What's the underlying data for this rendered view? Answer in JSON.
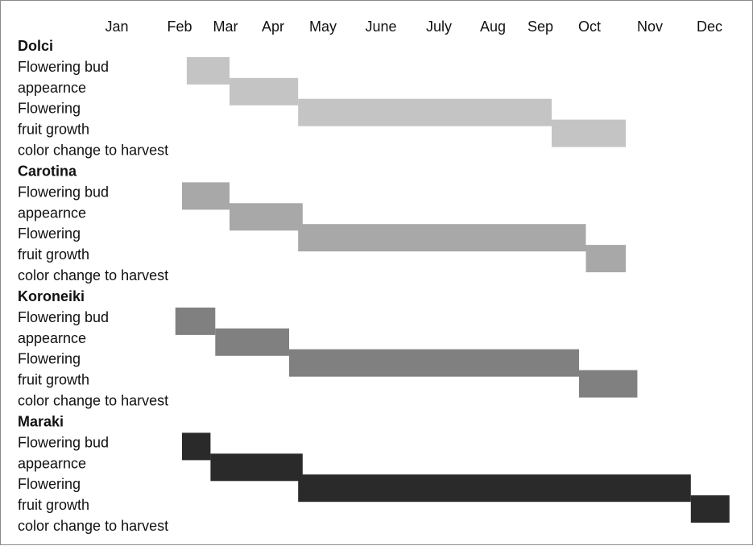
{
  "chart_data": {
    "type": "gantt",
    "months": [
      "Jan",
      "Feb",
      "Mar",
      "Apr",
      "May",
      "June",
      "July",
      "Aug",
      "Sep",
      "Oct",
      "Nov",
      "Dec"
    ],
    "row_labels": [
      "Flowering bud",
      "appearnce",
      "Flowering",
      "fruit growth",
      "color change to harvest"
    ],
    "phases": [
      "Flowering bud appearnce",
      "Flowering",
      "fruit growth",
      "color change to harvest"
    ],
    "groups": [
      {
        "name": "Dolci",
        "color": "#c4c4c4",
        "phases": [
          {
            "phase": "Flowering bud appearnce",
            "start": 1.1,
            "end": 2.0
          },
          {
            "phase": "Flowering",
            "start": 2.0,
            "end": 3.2
          },
          {
            "phase": "fruit growth",
            "start": 3.2,
            "end": 8.2
          },
          {
            "phase": "color change to harvest",
            "start": 8.2,
            "end": 9.5
          }
        ]
      },
      {
        "name": "Carotina",
        "color": "#a8a8a8",
        "phases": [
          {
            "phase": "Flowering bud appearnce",
            "start": 1.0,
            "end": 2.0
          },
          {
            "phase": "Flowering",
            "start": 2.0,
            "end": 3.3
          },
          {
            "phase": "fruit growth",
            "start": 3.2,
            "end": 8.7
          },
          {
            "phase": "color change to harvest",
            "start": 8.7,
            "end": 9.5
          }
        ]
      },
      {
        "name": "Koroneiki",
        "color": "#808080",
        "phases": [
          {
            "phase": "Flowering bud appearnce",
            "start": 0.95,
            "end": 1.7
          },
          {
            "phase": "Flowering",
            "start": 1.7,
            "end": 3.0
          },
          {
            "phase": "fruit growth",
            "start": 3.0,
            "end": 8.6
          },
          {
            "phase": "color change to harvest",
            "start": 8.6,
            "end": 9.8
          }
        ]
      },
      {
        "name": "Maraki",
        "color": "#2a2a2a",
        "phases": [
          {
            "phase": "Flowering bud appearnce",
            "start": 1.0,
            "end": 1.6
          },
          {
            "phase": "Flowering",
            "start": 1.6,
            "end": 3.3
          },
          {
            "phase": "fruit growth",
            "start": 3.2,
            "end": 11.1
          },
          {
            "phase": "color change to harvest",
            "start": 11.1,
            "end": 12.1
          }
        ]
      }
    ]
  }
}
